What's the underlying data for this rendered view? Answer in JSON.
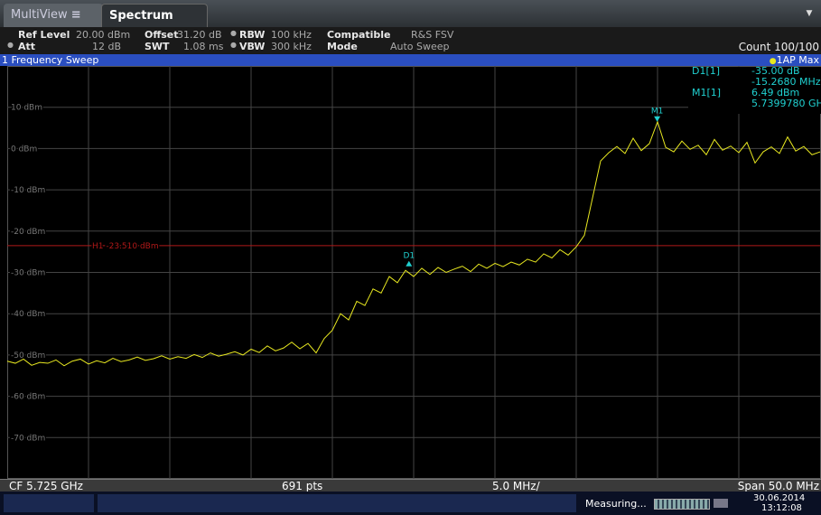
{
  "tabs": {
    "multiview": "MultiView",
    "spectrum": "Spectrum"
  },
  "settings": {
    "ref_level_label": "Ref Level",
    "ref_level": "20.00 dBm",
    "offset_label": "Offset",
    "offset": "31.20 dB",
    "rbw_label": "RBW",
    "rbw": "100 kHz",
    "compatible_label": "Compatible",
    "compatible": "R&S FSV",
    "att_label": "Att",
    "att": "12 dB",
    "swt_label": "SWT",
    "swt": "1.08 ms",
    "vbw_label": "VBW",
    "vbw": "300 kHz",
    "mode_label": "Mode",
    "mode": "Auto Sweep",
    "count": "Count 100/100"
  },
  "window_title": "1 Frequency Sweep",
  "marker_table": [
    {
      "name": "D1[1]",
      "level": "-35.00 dB",
      "position": "-15.2680 MHz"
    },
    {
      "name": "M1[1]",
      "level": "6.49 dBm",
      "position": "5.7399780 GHz"
    }
  ],
  "footer": {
    "center": "CF 5.725 GHz",
    "points": "691 pts",
    "per_div": "5.0 MHz/",
    "span": "Span 50.0 MHz"
  },
  "status": {
    "state": "Measuring...",
    "date": "30.06.2014",
    "time": "13:12:08"
  },
  "chart_data": {
    "type": "line",
    "xlim": [
      5700,
      5750
    ],
    "xticks": [
      5705,
      5710,
      5715,
      5720,
      5725,
      5730,
      5735,
      5740,
      5745
    ],
    "ylim": [
      -80,
      20
    ],
    "yticks": [
      {
        "value": 10,
        "label": "10 dBm"
      },
      {
        "value": 0,
        "label": "0 dBm"
      },
      {
        "value": -10,
        "label": "-10 dBm"
      },
      {
        "value": -20,
        "label": "-20 dBm"
      },
      {
        "value": -30,
        "label": "-30 dBm"
      },
      {
        "value": -40,
        "label": "-40 dBm"
      },
      {
        "value": -50,
        "label": "-50 dBm"
      },
      {
        "value": -60,
        "label": "-60 dBm"
      },
      {
        "value": -70,
        "label": "-70 dBm"
      }
    ],
    "grid": true,
    "x": [
      5700,
      5700.5,
      5701,
      5701.5,
      5702,
      5702.5,
      5703,
      5703.5,
      5704,
      5704.5,
      5705,
      5705.5,
      5706,
      5706.5,
      5707,
      5707.5,
      5708,
      5708.5,
      5709,
      5709.5,
      5710,
      5710.5,
      5711,
      5711.5,
      5712,
      5712.5,
      5713,
      5713.5,
      5714,
      5714.5,
      5715,
      5715.5,
      5716,
      5716.5,
      5717,
      5717.5,
      5718,
      5718.5,
      5719,
      5719.5,
      5720,
      5720.5,
      5721,
      5721.5,
      5722,
      5722.5,
      5723,
      5723.5,
      5724,
      5724.5,
      5725,
      5725.5,
      5726,
      5726.5,
      5727,
      5727.5,
      5728,
      5728.5,
      5729,
      5729.5,
      5730,
      5730.5,
      5731,
      5731.5,
      5732,
      5732.5,
      5733,
      5733.5,
      5734,
      5734.5,
      5735,
      5735.5,
      5736,
      5736.5,
      5737,
      5737.5,
      5738,
      5738.5,
      5739,
      5739.5,
      5740,
      5740.5,
      5741,
      5741.5,
      5742,
      5742.5,
      5743,
      5743.5,
      5744,
      5744.5,
      5745,
      5745.5,
      5746,
      5746.5,
      5747,
      5747.5,
      5748,
      5748.5,
      5749,
      5749.5,
      5750
    ],
    "series": [
      {
        "name": "1AP Max",
        "color": "#e8e820",
        "values": [
          -51.5,
          -52,
          -51,
          -52.5,
          -51.8,
          -52,
          -51.2,
          -52.6,
          -51.5,
          -51,
          -52.2,
          -51.4,
          -51.9,
          -50.8,
          -51.6,
          -51.2,
          -50.5,
          -51.3,
          -50.9,
          -50.2,
          -51,
          -50.4,
          -50.8,
          -49.9,
          -50.6,
          -49.5,
          -50.3,
          -49.8,
          -49.2,
          -50,
          -48.6,
          -49.4,
          -47.8,
          -49,
          -48.3,
          -46.9,
          -48.5,
          -47.2,
          -49.5,
          -46,
          -44,
          -40,
          -41.5,
          -37,
          -38,
          -34,
          -35,
          -31,
          -32.5,
          -29.5,
          -31,
          -29,
          -30.5,
          -28.8,
          -30,
          -29.2,
          -28.5,
          -29.8,
          -28,
          -29,
          -27.8,
          -28.6,
          -27.5,
          -28.2,
          -26.8,
          -27.5,
          -25.5,
          -26.5,
          -24.5,
          -25.8,
          -23.8,
          -21,
          -12,
          -3,
          -1,
          0.5,
          -1.2,
          2.5,
          -0.5,
          1.2,
          6.49,
          0.3,
          -0.8,
          1.8,
          -0.2,
          0.8,
          -1.5,
          2.2,
          -0.4,
          0.6,
          -1,
          1.5,
          -3.5,
          -0.8,
          0.4,
          -1.2,
          2.8,
          -0.6,
          0.5,
          -1.5,
          -0.8
        ]
      }
    ],
    "hline": {
      "value": -23.51,
      "label": "H1 -23.510 dBm",
      "color": "#b01818"
    },
    "markers": [
      {
        "label": "M1",
        "x": 5739.978,
        "y": 6.49
      },
      {
        "label": "D1",
        "x": 5724.71,
        "y": -28.51
      }
    ],
    "marker_color": "#20d0d0"
  }
}
